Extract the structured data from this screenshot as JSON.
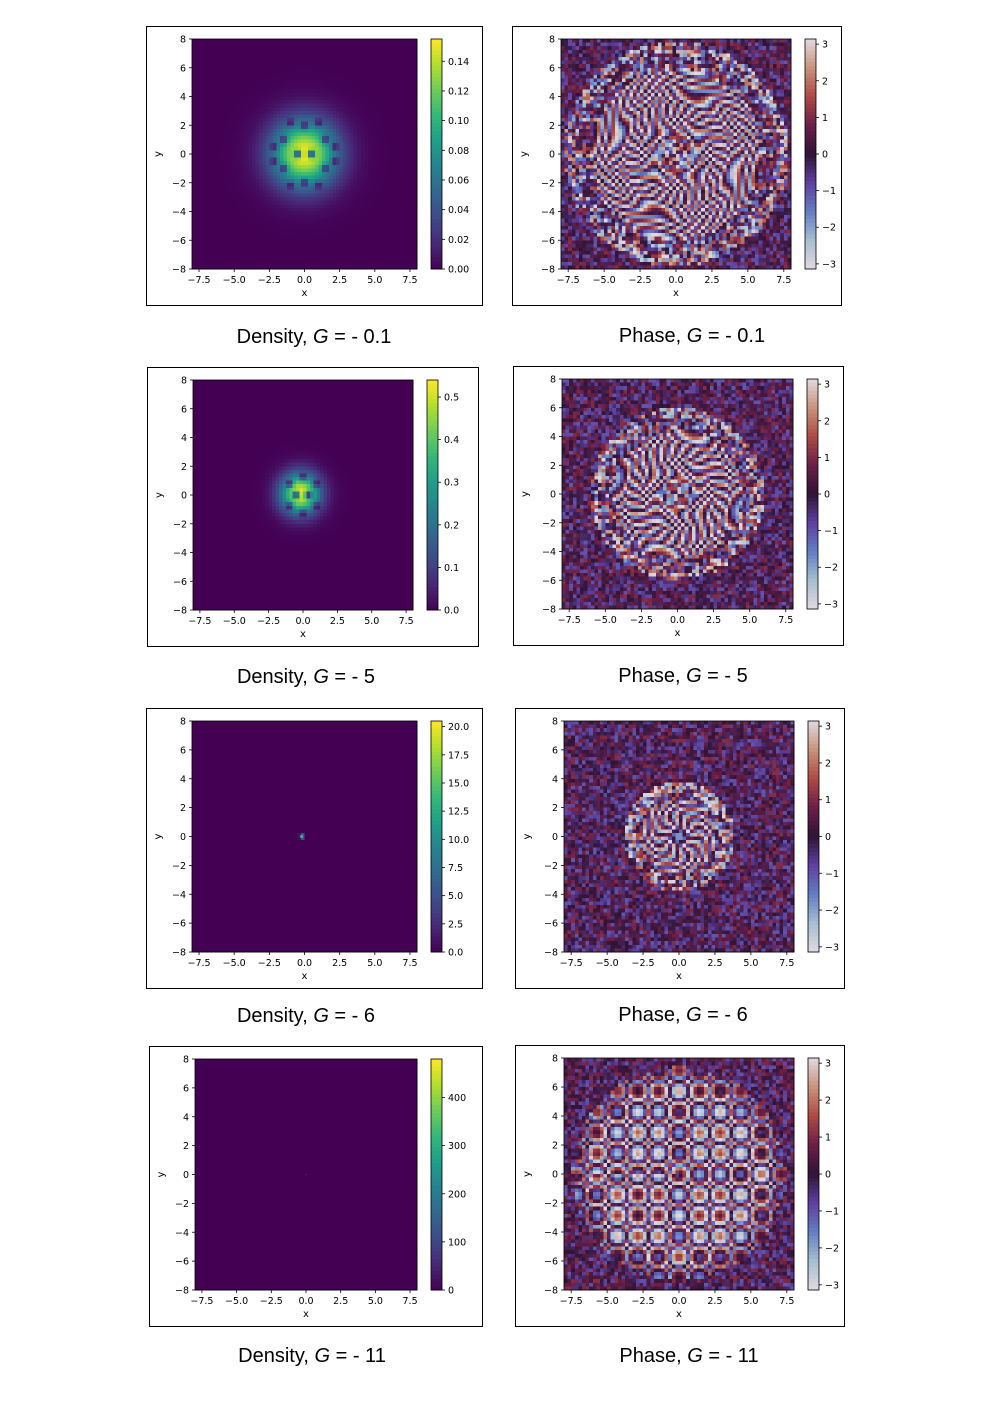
{
  "chart_data": [
    {
      "type": "heatmap",
      "kind": "density",
      "caption_prefix": "Density, ",
      "g_symbol": "G",
      "g_value": " = - 0.1",
      "xlabel": "x",
      "ylabel": "y",
      "xlim": [
        -8,
        8
      ],
      "ylim": [
        -8,
        8
      ],
      "xticks": [
        "−7.5",
        "−5.0",
        "−2.5",
        "0.0",
        "2.5",
        "5.0",
        "7.5"
      ],
      "yticks": [
        "8",
        "6",
        "4",
        "2",
        "0",
        "−2",
        "−4",
        "−6",
        "−8"
      ],
      "colorbar": {
        "min": 0,
        "max": 0.155,
        "ticks": [
          "0.00",
          "0.02",
          "0.04",
          "0.06",
          "0.08",
          "0.10",
          "0.12",
          "0.14"
        ]
      },
      "colormap": "viridis",
      "peak_center": [
        0.0,
        0.0
      ],
      "spread": 2.3,
      "vortices": [
        [
          0.5,
          0
        ],
        [
          -0.5,
          0
        ],
        [
          1.5,
          1.0
        ],
        [
          -1.5,
          1.0
        ],
        [
          1.5,
          -1.0
        ],
        [
          -1.5,
          -1.0
        ],
        [
          0,
          2.0
        ],
        [
          0,
          -2.0
        ],
        [
          1.0,
          2.2
        ],
        [
          -1.0,
          2.2
        ],
        [
          1.0,
          -2.2
        ],
        [
          -1.0,
          -2.2
        ],
        [
          2.2,
          0.5
        ],
        [
          -2.2,
          0.5
        ],
        [
          2.2,
          -0.5
        ],
        [
          -2.2,
          -0.5
        ]
      ]
    },
    {
      "type": "heatmap",
      "kind": "phase",
      "caption_prefix": "Phase, ",
      "g_symbol": "G",
      "g_value": " = - 0.1",
      "xlabel": "x",
      "ylabel": "y",
      "xlim": [
        -8,
        8
      ],
      "ylim": [
        -8,
        8
      ],
      "xticks": [
        "−7.5",
        "−5.0",
        "−2.5",
        "0.0",
        "2.5",
        "5.0",
        "7.5"
      ],
      "yticks": [
        "8",
        "6",
        "4",
        "2",
        "0",
        "−2",
        "−4",
        "−6",
        "−8"
      ],
      "colorbar": {
        "min": -3.14,
        "max": 3.14,
        "ticks": [
          "3",
          "2",
          "1",
          "0",
          "−1",
          "−2",
          "−3"
        ]
      },
      "colormap": "twilight",
      "pattern": "spiral",
      "arms": 30,
      "inner_radius": 7.0
    },
    {
      "type": "heatmap",
      "kind": "density",
      "caption_prefix": "Density, ",
      "g_symbol": "G",
      "g_value": " = - 5",
      "xlabel": "x",
      "ylabel": "y",
      "xlim": [
        -8,
        8
      ],
      "ylim": [
        -8,
        8
      ],
      "xticks": [
        "−7.5",
        "−5.0",
        "−2.5",
        "0.0",
        "2.5",
        "5.0",
        "7.5"
      ],
      "yticks": [
        "8",
        "6",
        "4",
        "2",
        "0",
        "−2",
        "−4",
        "−6",
        "−8"
      ],
      "colorbar": {
        "min": 0,
        "max": 0.54,
        "ticks": [
          "0.0",
          "0.1",
          "0.2",
          "0.3",
          "0.4",
          "0.5"
        ]
      },
      "colormap": "viridis",
      "peak_center": [
        -0.2,
        0.1
      ],
      "spread": 1.4,
      "vortices": [
        [
          0.4,
          0
        ],
        [
          -0.5,
          0
        ],
        [
          1.0,
          0.8
        ],
        [
          -1.0,
          0.8
        ],
        [
          1.0,
          -0.8
        ],
        [
          -1.0,
          -0.8
        ],
        [
          0,
          1.3
        ],
        [
          0,
          -1.3
        ]
      ]
    },
    {
      "type": "heatmap",
      "kind": "phase",
      "caption_prefix": "Phase, ",
      "g_symbol": "G",
      "g_value": " = - 5",
      "xlabel": "x",
      "ylabel": "y",
      "xlim": [
        -8,
        8
      ],
      "ylim": [
        -8,
        8
      ],
      "xticks": [
        "−7.5",
        "−5.0",
        "−2.5",
        "0.0",
        "2.5",
        "5.0",
        "7.5"
      ],
      "yticks": [
        "8",
        "6",
        "4",
        "2",
        "0",
        "−2",
        "−4",
        "−6",
        "−8"
      ],
      "colorbar": {
        "min": -3.14,
        "max": 3.14,
        "ticks": [
          "3",
          "2",
          "1",
          "0",
          "−1",
          "−2",
          "−3"
        ]
      },
      "colormap": "twilight",
      "pattern": "spiral",
      "arms": 26,
      "inner_radius": 5.2
    },
    {
      "type": "heatmap",
      "kind": "density",
      "caption_prefix": "Density, ",
      "g_symbol": "G",
      "g_value": " = - 6",
      "xlabel": "x",
      "ylabel": "y",
      "xlim": [
        -8,
        8
      ],
      "ylim": [
        -8,
        8
      ],
      "xticks": [
        "−7.5",
        "−5.0",
        "−2.5",
        "0.0",
        "2.5",
        "5.0",
        "7.5"
      ],
      "yticks": [
        "8",
        "6",
        "4",
        "2",
        "0",
        "−2",
        "−4",
        "−6",
        "−8"
      ],
      "colorbar": {
        "min": 0,
        "max": 20.5,
        "ticks": [
          "0.0",
          "2.5",
          "5.0",
          "7.5",
          "10.0",
          "12.5",
          "15.0",
          "17.5",
          "20.0"
        ]
      },
      "colormap": "viridis",
      "peak_center": [
        -0.2,
        0.0
      ],
      "spread": 0.12,
      "vortices": []
    },
    {
      "type": "heatmap",
      "kind": "phase",
      "caption_prefix": "Phase, ",
      "g_symbol": "G",
      "g_value": " = - 6",
      "xlabel": "x",
      "ylabel": "y",
      "xlim": [
        -8,
        8
      ],
      "ylim": [
        -8,
        8
      ],
      "xticks": [
        "−7.5",
        "−5.0",
        "−2.5",
        "0.0",
        "2.5",
        "5.0",
        "7.5"
      ],
      "yticks": [
        "8",
        "6",
        "4",
        "2",
        "0",
        "−2",
        "−4",
        "−6",
        "−8"
      ],
      "colorbar": {
        "min": -3.14,
        "max": 3.14,
        "ticks": [
          "3",
          "2",
          "1",
          "0",
          "−1",
          "−2",
          "−3"
        ]
      },
      "colormap": "twilight",
      "pattern": "spiral",
      "arms": 12,
      "inner_radius": 3.0
    },
    {
      "type": "heatmap",
      "kind": "density",
      "caption_prefix": "Density, ",
      "g_symbol": "G",
      "g_value": " = - 11",
      "xlabel": "x",
      "ylabel": "y",
      "xlim": [
        -8,
        8
      ],
      "ylim": [
        -8,
        8
      ],
      "xticks": [
        "−7.5",
        "−5.0",
        "−2.5",
        "0.0",
        "2.5",
        "5.0",
        "7.5"
      ],
      "yticks": [
        "8",
        "6",
        "4",
        "2",
        "0",
        "−2",
        "−4",
        "−6",
        "−8"
      ],
      "colorbar": {
        "min": 0,
        "max": 480,
        "ticks": [
          "0",
          "100",
          "200",
          "300",
          "400"
        ]
      },
      "colormap": "viridis",
      "peak_center": [
        0.0,
        0.0
      ],
      "spread": 0.03,
      "vortices": []
    },
    {
      "type": "heatmap",
      "kind": "phase",
      "caption_prefix": "Phase, ",
      "g_symbol": "G",
      "g_value": " = - 11",
      "xlabel": "x",
      "ylabel": "y",
      "xlim": [
        -8,
        8
      ],
      "ylim": [
        -8,
        8
      ],
      "xticks": [
        "−7.5",
        "−5.0",
        "−2.5",
        "0.0",
        "2.5",
        "5.0",
        "7.5"
      ],
      "yticks": [
        "8",
        "6",
        "4",
        "2",
        "0",
        "−2",
        "−4",
        "−6",
        "−8"
      ],
      "colorbar": {
        "min": -3.14,
        "max": 3.14,
        "ticks": [
          "3",
          "2",
          "1",
          "0",
          "−1",
          "−2",
          "−3"
        ]
      },
      "colormap": "twilight",
      "pattern": "rings",
      "arms": 0,
      "inner_radius": 7.0
    }
  ]
}
